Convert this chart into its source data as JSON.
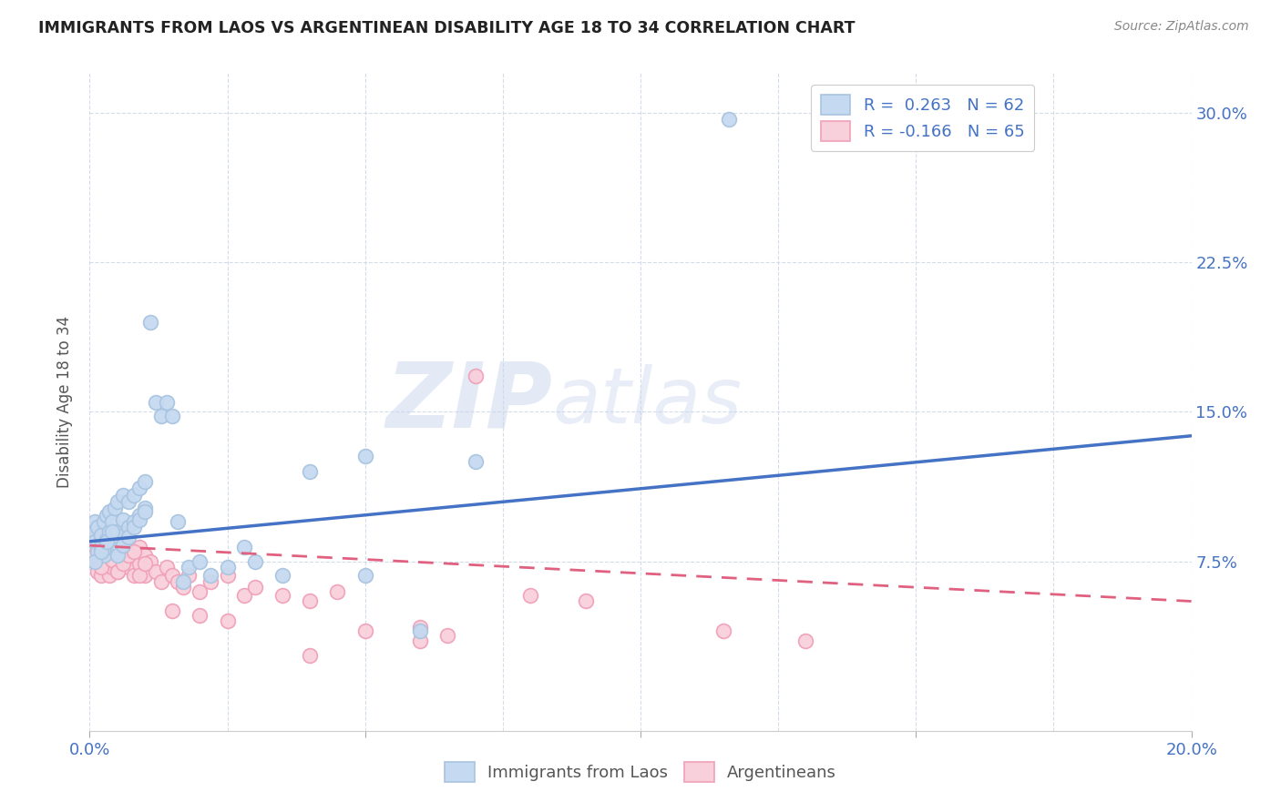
{
  "title": "IMMIGRANTS FROM LAOS VS ARGENTINEAN DISABILITY AGE 18 TO 34 CORRELATION CHART",
  "source": "Source: ZipAtlas.com",
  "ylabel": "Disability Age 18 to 34",
  "xlim": [
    0.0,
    0.2
  ],
  "ylim": [
    -0.01,
    0.32
  ],
  "ytick_positions": [
    0.075,
    0.15,
    0.225,
    0.3
  ],
  "ytick_labels": [
    "7.5%",
    "15.0%",
    "22.5%",
    "30.0%"
  ],
  "blue_color": "#a8c4e0",
  "blue_fill": "#c5d9f0",
  "pink_color": "#f0a0b8",
  "pink_fill": "#f8d0dc",
  "blue_line_color": "#4472c4",
  "pink_line_color": "#e06080",
  "legend_blue_label": "R =  0.263   N = 62",
  "legend_pink_label": "R = -0.166   N = 65",
  "bottom_legend_blue": "Immigrants from Laos",
  "bottom_legend_pink": "Argentineans",
  "watermark_zip": "ZIP",
  "watermark_atlas": "atlas",
  "blue_trend_x": [
    0.0,
    0.2
  ],
  "blue_trend_y": [
    0.085,
    0.138
  ],
  "pink_trend_x": [
    0.0,
    0.2
  ],
  "pink_trend_y": [
    0.083,
    0.055
  ],
  "blue_scatter_x": [
    0.0005,
    0.001,
    0.001,
    0.0015,
    0.0015,
    0.002,
    0.002,
    0.0025,
    0.0025,
    0.003,
    0.003,
    0.003,
    0.0035,
    0.0035,
    0.004,
    0.004,
    0.0045,
    0.0045,
    0.005,
    0.005,
    0.005,
    0.006,
    0.006,
    0.006,
    0.007,
    0.007,
    0.008,
    0.008,
    0.009,
    0.009,
    0.01,
    0.01,
    0.011,
    0.012,
    0.013,
    0.014,
    0.015,
    0.016,
    0.017,
    0.018,
    0.02,
    0.022,
    0.025,
    0.028,
    0.03,
    0.035,
    0.04,
    0.05,
    0.06,
    0.07,
    0.001,
    0.002,
    0.003,
    0.004,
    0.005,
    0.006,
    0.007,
    0.008,
    0.009,
    0.01,
    0.05,
    0.116
  ],
  "blue_scatter_y": [
    0.09,
    0.085,
    0.095,
    0.08,
    0.092,
    0.082,
    0.088,
    0.078,
    0.095,
    0.082,
    0.086,
    0.098,
    0.09,
    0.1,
    0.085,
    0.095,
    0.088,
    0.102,
    0.08,
    0.09,
    0.105,
    0.088,
    0.096,
    0.108,
    0.092,
    0.105,
    0.095,
    0.108,
    0.098,
    0.112,
    0.102,
    0.115,
    0.195,
    0.155,
    0.148,
    0.155,
    0.148,
    0.095,
    0.065,
    0.072,
    0.075,
    0.068,
    0.072,
    0.082,
    0.075,
    0.068,
    0.12,
    0.068,
    0.04,
    0.125,
    0.075,
    0.08,
    0.085,
    0.09,
    0.078,
    0.083,
    0.087,
    0.092,
    0.096,
    0.1,
    0.128,
    0.297
  ],
  "pink_scatter_x": [
    0.0005,
    0.001,
    0.001,
    0.0015,
    0.0015,
    0.002,
    0.002,
    0.0025,
    0.003,
    0.003,
    0.0035,
    0.004,
    0.004,
    0.0045,
    0.005,
    0.005,
    0.006,
    0.006,
    0.007,
    0.007,
    0.008,
    0.008,
    0.009,
    0.009,
    0.01,
    0.01,
    0.011,
    0.012,
    0.013,
    0.014,
    0.015,
    0.016,
    0.017,
    0.018,
    0.02,
    0.022,
    0.025,
    0.028,
    0.03,
    0.035,
    0.04,
    0.045,
    0.05,
    0.06,
    0.065,
    0.07,
    0.08,
    0.09,
    0.001,
    0.002,
    0.003,
    0.004,
    0.005,
    0.006,
    0.007,
    0.008,
    0.009,
    0.01,
    0.015,
    0.02,
    0.025,
    0.115,
    0.13,
    0.06,
    0.04
  ],
  "pink_scatter_y": [
    0.082,
    0.075,
    0.088,
    0.07,
    0.08,
    0.068,
    0.078,
    0.072,
    0.075,
    0.085,
    0.068,
    0.072,
    0.082,
    0.076,
    0.07,
    0.08,
    0.075,
    0.088,
    0.072,
    0.082,
    0.068,
    0.078,
    0.074,
    0.082,
    0.068,
    0.078,
    0.075,
    0.07,
    0.065,
    0.072,
    0.068,
    0.065,
    0.062,
    0.068,
    0.06,
    0.065,
    0.068,
    0.058,
    0.062,
    0.058,
    0.055,
    0.06,
    0.04,
    0.042,
    0.038,
    0.168,
    0.058,
    0.055,
    0.078,
    0.072,
    0.08,
    0.076,
    0.07,
    0.074,
    0.078,
    0.08,
    0.068,
    0.074,
    0.05,
    0.048,
    0.045,
    0.04,
    0.035,
    0.035,
    0.028
  ]
}
